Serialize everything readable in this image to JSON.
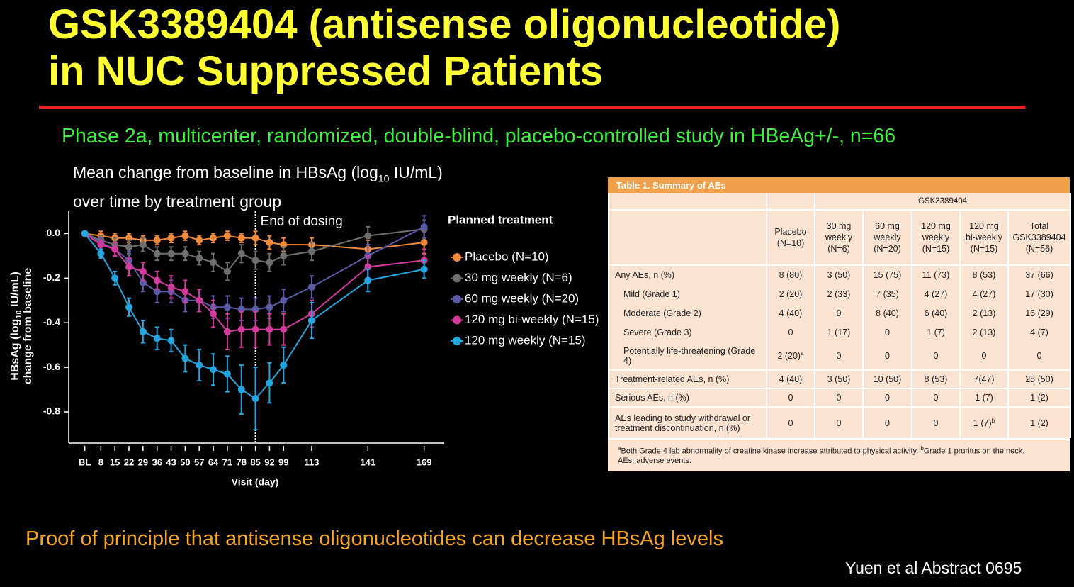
{
  "slide": {
    "title": [
      "GSK3389404 (antisense oligonucleotide)",
      "in NUC Suppressed Patients"
    ],
    "subtitle": "Phase 2a, multicenter, randomized, double-blind, placebo-controlled study in HBeAg+/-, n=66",
    "conclusion": "Proof of principle that antisense oligonucleotides can decrease HBsAg levels",
    "citation": "Yuen et al Abstract 0695"
  },
  "chart_data": {
    "type": "line",
    "title": [
      "Mean change from baseline in HBsAg (log",
      "10",
      " IU/mL) over time by treatment group"
    ],
    "x_label": "Visit (day)",
    "y_label": [
      "HBsAg (log",
      "10",
      " IU/mL)",
      "change from baseline"
    ],
    "annotation": {
      "text": "End of dosing",
      "x": 85
    },
    "legend_title": "Planned treatment",
    "x": [
      0,
      8,
      15,
      22,
      29,
      36,
      43,
      50,
      57,
      64,
      71,
      78,
      85,
      92,
      99,
      113,
      141,
      169
    ],
    "xlim": [
      -8,
      179
    ],
    "xticks": [
      {
        "value": 0,
        "label": "BL"
      },
      8,
      15,
      22,
      29,
      36,
      43,
      50,
      57,
      64,
      71,
      78,
      85,
      92,
      99,
      113,
      141,
      169
    ],
    "ylim": [
      -0.94,
      0.1
    ],
    "yticks": [
      {
        "value": 0,
        "label": "0.0"
      },
      -0.2,
      -0.4,
      -0.6,
      -0.8
    ],
    "series": [
      {
        "name": "Placebo (N=10)",
        "color": "#f08a3c",
        "values": [
          0,
          -0.01,
          -0.02,
          -0.02,
          -0.03,
          -0.03,
          -0.02,
          -0.01,
          -0.03,
          -0.02,
          -0.01,
          -0.02,
          -0.02,
          -0.04,
          -0.05,
          -0.05,
          -0.07,
          -0.04
        ],
        "errors": [
          0,
          0.02,
          0.02,
          0.02,
          0.02,
          0.02,
          0.02,
          0.02,
          0.02,
          0.02,
          0.02,
          0.02,
          0.03,
          0.03,
          0.03,
          0.03,
          0.04,
          0.05
        ]
      },
      {
        "name": "30 mg weekly (N=6)",
        "color": "#6e6e6e",
        "values": [
          0,
          -0.03,
          -0.05,
          -0.06,
          -0.05,
          -0.09,
          -0.09,
          -0.09,
          -0.11,
          -0.13,
          -0.17,
          -0.09,
          -0.12,
          -0.13,
          -0.1,
          -0.08,
          -0.01,
          0.02
        ],
        "errors": [
          0,
          0.02,
          0.03,
          0.03,
          0.03,
          0.03,
          0.03,
          0.03,
          0.03,
          0.04,
          0.04,
          0.04,
          0.04,
          0.04,
          0.04,
          0.04,
          0.04,
          0.04
        ]
      },
      {
        "name": "60 mg weekly (N=20)",
        "color": "#5b5ba8",
        "values": [
          0,
          -0.04,
          -0.07,
          -0.12,
          -0.22,
          -0.26,
          -0.26,
          -0.3,
          -0.3,
          -0.33,
          -0.33,
          -0.34,
          -0.34,
          -0.33,
          -0.3,
          -0.24,
          -0.1,
          0.03
        ],
        "errors": [
          0,
          0.02,
          0.03,
          0.04,
          0.04,
          0.05,
          0.05,
          0.05,
          0.05,
          0.05,
          0.05,
          0.05,
          0.05,
          0.05,
          0.05,
          0.05,
          0.05,
          0.05
        ]
      },
      {
        "name": "120 mg bi-weekly (N=15)",
        "color": "#d23a9b",
        "values": [
          0,
          -0.05,
          -0.07,
          -0.15,
          -0.17,
          -0.21,
          -0.24,
          -0.26,
          -0.3,
          -0.36,
          -0.44,
          -0.43,
          -0.43,
          -0.43,
          -0.43,
          -0.36,
          -0.15,
          -0.12
        ],
        "errors": [
          0,
          0.02,
          0.03,
          0.04,
          0.04,
          0.04,
          0.05,
          0.05,
          0.05,
          0.06,
          0.08,
          0.08,
          0.08,
          0.07,
          0.07,
          0.06,
          0.05,
          0.05
        ]
      },
      {
        "name": "120 mg weekly (N=15)",
        "color": "#23a5e0",
        "values": [
          0,
          -0.09,
          -0.2,
          -0.33,
          -0.44,
          -0.47,
          -0.48,
          -0.56,
          -0.59,
          -0.61,
          -0.63,
          -0.7,
          -0.74,
          -0.67,
          -0.59,
          -0.39,
          -0.21,
          -0.16
        ],
        "errors": [
          0,
          0.02,
          0.03,
          0.04,
          0.05,
          0.05,
          0.05,
          0.06,
          0.07,
          0.07,
          0.08,
          0.11,
          0.14,
          0.09,
          0.08,
          0.08,
          0.05,
          0.04
        ]
      }
    ]
  },
  "table": {
    "title": "Table 1. Summary of AEs",
    "group_header": "GSK3389404",
    "columns": [
      "Placebo (N=10)",
      "30 mg weekly (N=6)",
      "60 mg weekly (N=20)",
      "120 mg weekly (N=15)",
      "120 mg bi-weekly (N=15)",
      "Total GSK3389404 (N=56)"
    ],
    "rows": [
      {
        "label": "Any AEs, n (%)",
        "cells": [
          "8 (80)",
          "3 (50)",
          "15 (75)",
          "11 (73)",
          "8 (53)",
          "37 (66)"
        ]
      },
      {
        "label": "Mild (Grade 1)",
        "cells": [
          "2 (20)",
          "2 (33)",
          "7 (35)",
          "4 (27)",
          "4 (27)",
          "17 (30)"
        ]
      },
      {
        "label": "Moderate (Grade 2)",
        "cells": [
          "4 (40)",
          "0",
          "8 (40)",
          "6 (40)",
          "2 (13)",
          "16 (29)"
        ]
      },
      {
        "label": "Severe (Grade 3)",
        "cells": [
          "0",
          "1 (17)",
          "0",
          "1 (7)",
          "2 (13)",
          "4 (7)"
        ]
      },
      {
        "label": "Potentially life-threatening (Grade 4)",
        "cells": [
          {
            "text": "2 (20)",
            "sup": "a"
          },
          "0",
          "0",
          "0",
          "0",
          "0"
        ]
      },
      {
        "label": "Treatment-related AEs, n (%)",
        "cells": [
          "4 (40)",
          "3 (50)",
          "10 (50)",
          "8 (53)",
          "7(47)",
          "28 (50)"
        ]
      },
      {
        "label": "Serious AEs, n (%)",
        "cells": [
          "0",
          "0",
          "0",
          "0",
          "1 (7)",
          "1 (2)"
        ]
      },
      {
        "label": "AEs leading to study withdrawal or treatment discontinuation, n (%)",
        "cells": [
          "0",
          "0",
          "0",
          "0",
          {
            "text": "1 (7)",
            "sup": "b"
          },
          "1 (2)"
        ]
      }
    ],
    "footnotes": [
      {
        "sup": "a",
        "text": "Both Grade 4 lab abnormality of creatine kinase increase attributed to physical activity. "
      },
      {
        "sup": "b",
        "text": "Grade 1 pruritus on the neck."
      }
    ],
    "abbreviations": "AEs, adverse events."
  }
}
